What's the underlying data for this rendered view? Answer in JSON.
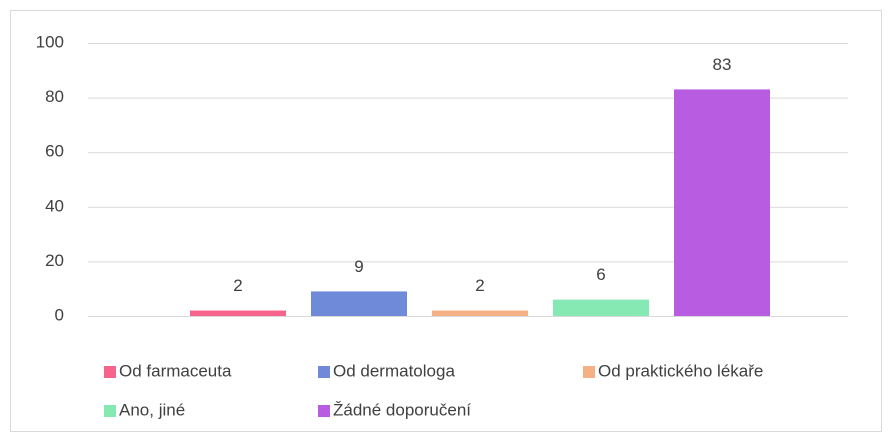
{
  "chart_data": {
    "type": "bar",
    "categories": [
      null
    ],
    "series": [
      {
        "name": "Od farmaceuta",
        "color": "#f6648c",
        "values": [
          2
        ]
      },
      {
        "name": "Od dermatologa",
        "color": "#6e8ad8",
        "values": [
          9
        ]
      },
      {
        "name": "Od praktického lékaře",
        "color": "#f5b184",
        "values": [
          2
        ]
      },
      {
        "name": "Ano, jiné",
        "color": "#86e8b2",
        "values": [
          6
        ]
      },
      {
        "name": "Žádné doporučení",
        "color": "#b85ce2",
        "values": [
          83
        ]
      }
    ],
    "ylim": [
      0,
      100
    ],
    "yticks": [
      0,
      20,
      40,
      60,
      80,
      100
    ],
    "grid": true,
    "legend": "bottom"
  }
}
